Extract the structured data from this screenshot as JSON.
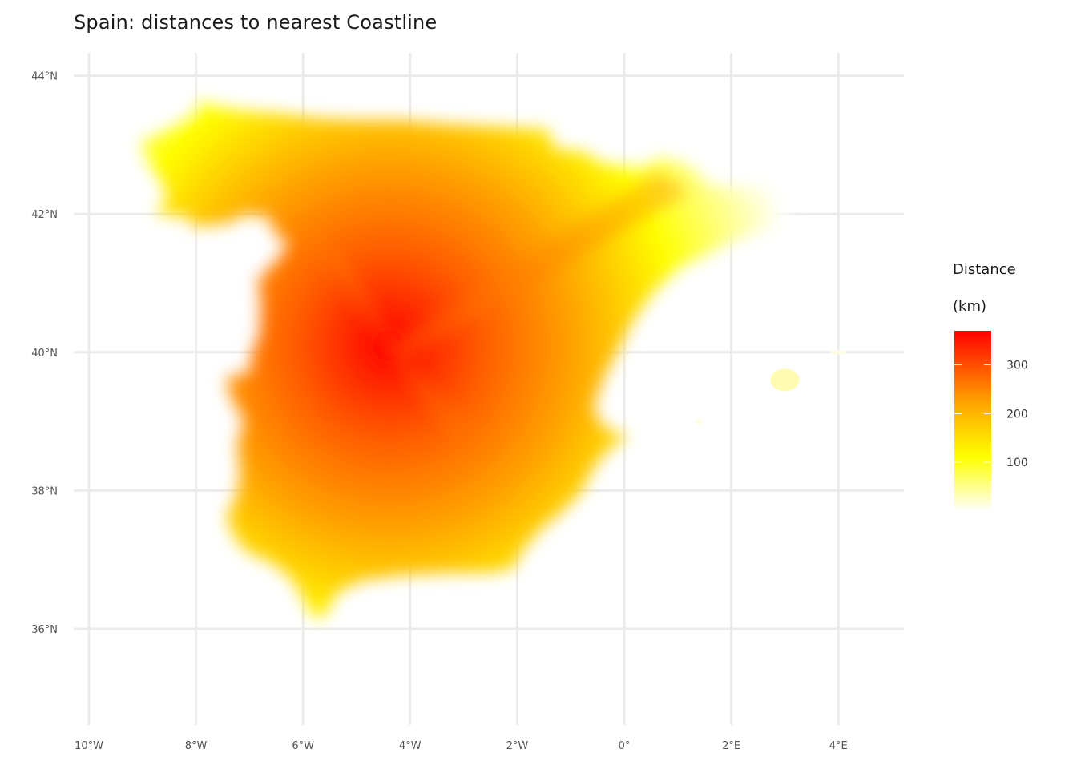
{
  "title": "Spain: distances to nearest Coastline",
  "map": {
    "lon_range": [
      -10,
      4
    ],
    "lat_range": [
      36,
      44
    ],
    "lon_ticks": [
      {
        "value": -10,
        "label": "10°W"
      },
      {
        "value": -8,
        "label": "8°W"
      },
      {
        "value": -6,
        "label": "6°W"
      },
      {
        "value": -4,
        "label": "4°W"
      },
      {
        "value": -2,
        "label": "2°W"
      },
      {
        "value": 0,
        "label": "0°"
      },
      {
        "value": 2,
        "label": "2°E"
      },
      {
        "value": 4,
        "label": "4°E"
      }
    ],
    "lat_ticks": [
      {
        "value": 44,
        "label": "44°N"
      },
      {
        "value": 42,
        "label": "42°N"
      },
      {
        "value": 40,
        "label": "40°N"
      },
      {
        "value": 38,
        "label": "38°N"
      },
      {
        "value": 36,
        "label": "36°N"
      }
    ],
    "grid": true,
    "peak_location": {
      "lon": -4.4,
      "lat": 40.1
    },
    "islands": [
      {
        "name_shown": false,
        "lon": 3.0,
        "lat": 39.6
      },
      {
        "name_shown": false,
        "lon": 1.4,
        "lat": 39.0
      },
      {
        "name_shown": false,
        "lon": 4.0,
        "lat": 40.0
      }
    ]
  },
  "legend": {
    "title_line1": "Distance",
    "title_line2": "(km)",
    "min": 0,
    "max": 370,
    "ticks": [
      {
        "value": 300,
        "label": "300"
      },
      {
        "value": 200,
        "label": "200"
      },
      {
        "value": 100,
        "label": "100"
      }
    ],
    "colors": {
      "low": "#ffffff",
      "mid": "#ffff00",
      "midhigh": "#ffa500",
      "high": "#ff0000"
    }
  },
  "grid_color": "#ebebeb"
}
